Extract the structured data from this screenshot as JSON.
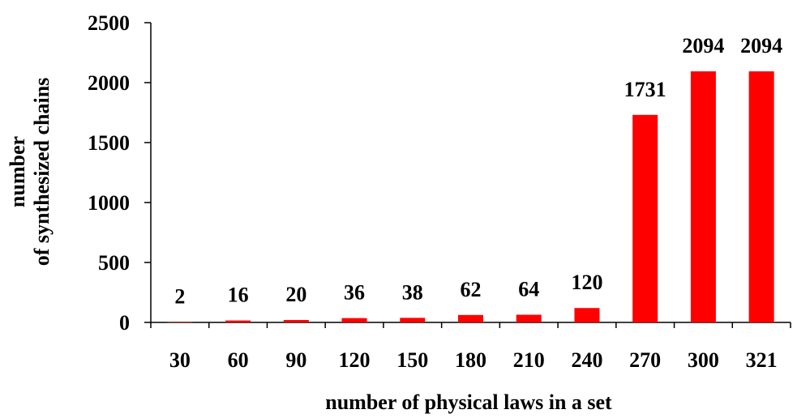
{
  "chart_data": {
    "type": "bar",
    "categories": [
      "30",
      "60",
      "90",
      "120",
      "150",
      "180",
      "210",
      "240",
      "270",
      "300",
      "321"
    ],
    "series": [
      {
        "values": [
          2,
          16,
          20,
          36,
          38,
          62,
          64,
          120,
          1731,
          2094,
          2094
        ],
        "color": "#ff0000"
      }
    ],
    "data_labels": [
      "2",
      "16",
      "20",
      "36",
      "38",
      "62",
      "64",
      "120",
      "1731",
      "2094",
      "2094"
    ],
    "title": "",
    "xlabel": "number of physical laws in a set",
    "ylabel_lines": [
      "number",
      "of synthesized chains"
    ],
    "ylim": [
      0,
      2500
    ],
    "yticks": [
      0,
      500,
      1000,
      1500,
      2000,
      2500
    ],
    "ytick_labels": [
      "0",
      "500",
      "1000",
      "1500",
      "2000",
      "2500"
    ],
    "grid": false,
    "legend": "none"
  }
}
